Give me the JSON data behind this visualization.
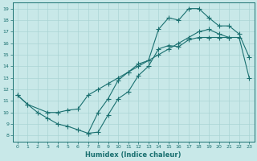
{
  "title": "",
  "xlabel": "Humidex (Indice chaleur)",
  "ylabel": "",
  "xlim": [
    -0.5,
    23.5
  ],
  "ylim": [
    7.5,
    19.5
  ],
  "yticks": [
    8,
    9,
    10,
    11,
    12,
    13,
    14,
    15,
    16,
    17,
    18,
    19
  ],
  "xticks": [
    0,
    1,
    2,
    3,
    4,
    5,
    6,
    7,
    8,
    9,
    10,
    11,
    12,
    13,
    14,
    15,
    16,
    17,
    18,
    19,
    20,
    21,
    22,
    23
  ],
  "bg_color": "#c8e8e8",
  "line_color": "#1a7070",
  "grid_color": "#aad4d4",
  "line1_x": [
    0,
    1,
    2,
    3,
    4,
    5,
    6,
    7,
    8,
    9,
    10,
    11,
    12,
    13,
    14,
    15,
    16,
    17,
    18,
    19,
    20,
    21
  ],
  "line1_y": [
    11.5,
    10.7,
    10.0,
    9.5,
    9.0,
    8.8,
    8.5,
    8.2,
    8.3,
    9.8,
    11.2,
    11.8,
    13.2,
    14.0,
    15.5,
    15.8,
    15.7,
    16.3,
    16.5,
    16.5,
    16.5,
    16.5
  ],
  "line2_x": [
    0,
    1,
    3,
    4,
    5,
    6,
    7,
    8,
    9,
    10,
    11,
    12,
    13,
    14,
    15,
    16,
    17,
    18,
    19,
    20,
    21,
    22,
    23
  ],
  "line2_y": [
    11.5,
    10.7,
    10.0,
    10.0,
    10.2,
    10.3,
    11.5,
    12.0,
    12.5,
    13.0,
    13.5,
    14.0,
    14.5,
    15.0,
    15.5,
    16.0,
    16.5,
    17.0,
    17.2,
    16.8,
    16.5,
    16.5,
    13.0
  ],
  "line3_x": [
    7,
    8,
    9,
    10,
    11,
    12,
    13,
    14,
    15,
    16,
    17,
    18,
    19,
    20,
    21,
    22,
    23
  ],
  "line3_y": [
    8.2,
    10.0,
    11.2,
    12.8,
    13.5,
    14.2,
    14.5,
    17.2,
    18.2,
    18.0,
    19.0,
    19.0,
    18.2,
    17.5,
    17.5,
    16.8,
    14.8
  ]
}
